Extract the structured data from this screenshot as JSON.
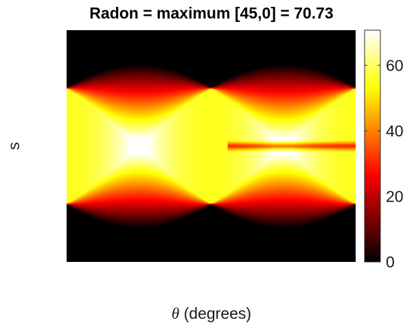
{
  "chart_data": {
    "type": "heatmap",
    "title": "Radon = maximum [45,0] = 70.73",
    "xlabel_symbol": "θ",
    "xlabel_text": " (degrees)",
    "ylabel": "s",
    "grid": false,
    "colormap": "hot",
    "colorbar": {
      "range": [
        0,
        70.73
      ],
      "ticks": [
        0,
        20,
        40,
        60
      ],
      "tick_labels": [
        "0",
        "20",
        "40",
        "60"
      ],
      "placement": "right"
    },
    "x_ticks_shown": false,
    "y_ticks_shown": false,
    "maximum": {
      "theta": 45,
      "s": 0,
      "value": 70.73
    }
  }
}
